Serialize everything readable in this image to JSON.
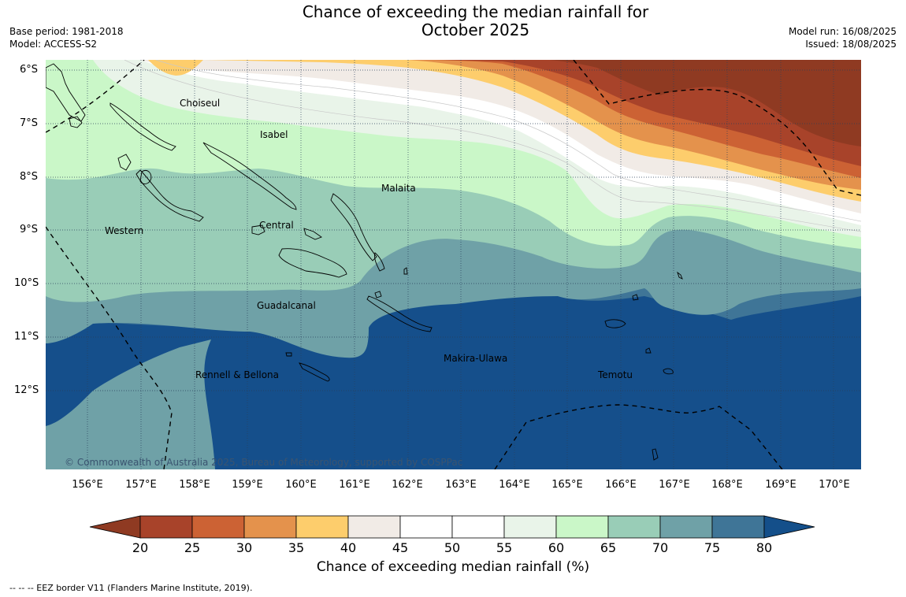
{
  "title": {
    "line1": "Chance of exceeding the median rainfall for",
    "line2": "October 2025"
  },
  "meta": {
    "base_period": "Base period: 1981-2018",
    "model": "Model: ACCESS-S2",
    "model_run": "Model run: 16/08/2025",
    "issued": "Issued: 18/08/2025"
  },
  "map": {
    "lat_labels": [
      "6°S",
      "7°S",
      "8°S",
      "9°S",
      "10°S",
      "11°S",
      "12°S"
    ],
    "lon_labels": [
      "156°E",
      "157°E",
      "158°E",
      "159°E",
      "160°E",
      "161°E",
      "162°E",
      "163°E",
      "164°E",
      "165°E",
      "166°E",
      "167°E",
      "168°E",
      "169°E",
      "170°E"
    ],
    "places": {
      "choiseul": "Choiseul",
      "isabel": "Isabel",
      "malaita": "Malaita",
      "western": "Western",
      "central": "Central",
      "guadalcanal": "Guadalcanal",
      "makira": "Makira-Ulawa",
      "rennell": "Rennell & Bellona",
      "temotu": "Temotu"
    },
    "copyright": "© Commonwealth of Australia 2025, Bureau of Meteorology, supported by COSPPac"
  },
  "colorbar": {
    "ticks": [
      "20",
      "25",
      "30",
      "35",
      "40",
      "45",
      "50",
      "55",
      "60",
      "65",
      "70",
      "75",
      "80"
    ],
    "colors": [
      "#a8432a",
      "#cc6234",
      "#e4924c",
      "#fdcd6c",
      "#f1ebe6",
      "#ffffff",
      "#ffffff",
      "#e9f4e9",
      "#caf7c8",
      "#99cdb7",
      "#6fa1a7",
      "#3f7597",
      "#154f8b"
    ],
    "under_color": "#8f3a22",
    "over_color": "#144f8a",
    "title": "Chance of exceeding median rainfall (%)"
  },
  "legend": {
    "eez": "--  --  -- EEZ border V11 (Flanders Marine Institute, 2019)."
  }
}
